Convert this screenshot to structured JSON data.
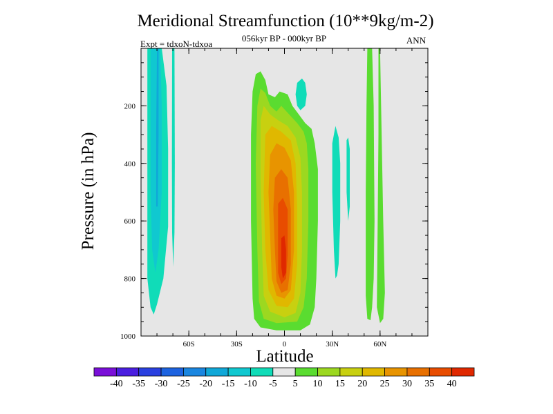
{
  "chart_data": {
    "type": "heatmap",
    "title": "Meridional Streamfunction (10**9kg/m-2)",
    "subtitle": "056kyr BP - 000kyr BP",
    "experiment_label": "Expt = tdxoN-tdxoa",
    "season_label": "ANN",
    "xlabel": "Latitude",
    "ylabel": "Pressure (in hPa)",
    "xlim": [
      -90,
      90
    ],
    "ylim": [
      1000,
      0
    ],
    "x_ticks": [
      {
        "value": -60,
        "label": "60S"
      },
      {
        "value": -30,
        "label": "30S"
      },
      {
        "value": 0,
        "label": "0"
      },
      {
        "value": 30,
        "label": "30N"
      },
      {
        "value": 60,
        "label": "60N"
      }
    ],
    "y_ticks": [
      {
        "value": 200,
        "label": "200"
      },
      {
        "value": 400,
        "label": "400"
      },
      {
        "value": 600,
        "label": "600"
      },
      {
        "value": 800,
        "label": "800"
      },
      {
        "value": 1000,
        "label": "1000"
      }
    ],
    "background_color": "#e6e6e6",
    "colorbar": {
      "levels": [
        -40,
        -35,
        -30,
        -25,
        -20,
        -15,
        -10,
        -5,
        5,
        10,
        15,
        20,
        25,
        30,
        35,
        40
      ],
      "labels": [
        "-40",
        "-35",
        "-30",
        "-25",
        "-20",
        "-15",
        "-10",
        "-5",
        "5",
        "10",
        "15",
        "20",
        "25",
        "30",
        "35",
        "40"
      ],
      "colors": [
        "#7a0fd8",
        "#4a1ee0",
        "#2a40e0",
        "#1d63e0",
        "#1a86e0",
        "#10a8d8",
        "#10c8d0",
        "#10dcb8",
        "#e6e6e6",
        "#5adc30",
        "#9cd820",
        "#c8d010",
        "#e0b800",
        "#e89400",
        "#e87000",
        "#e84c00",
        "#e02800"
      ]
    },
    "regions": [
      {
        "name": "sh-negative-band",
        "level": -10,
        "color": "#10dcb8",
        "points": [
          [
            -86,
            0
          ],
          [
            -77,
            0
          ],
          [
            -74,
            130
          ],
          [
            -73,
            350
          ],
          [
            -73,
            620
          ],
          [
            -76,
            800
          ],
          [
            -80,
            890
          ],
          [
            -82,
            925
          ],
          [
            -84,
            900
          ],
          [
            -86,
            800
          ],
          [
            -86,
            700
          ]
        ]
      },
      {
        "name": "sh-negative-core",
        "level": -15,
        "color": "#10c8d0",
        "points": [
          [
            -84,
            0
          ],
          [
            -78,
            0
          ],
          [
            -77,
            200
          ],
          [
            -77,
            500
          ],
          [
            -79,
            700
          ],
          [
            -81,
            780
          ],
          [
            -83,
            700
          ],
          [
            -84,
            500
          ]
        ]
      },
      {
        "name": "sh-negative-inner",
        "level": -20,
        "color": "#10a8d8",
        "points": [
          [
            -80,
            0
          ],
          [
            -79,
            0
          ],
          [
            -79,
            300
          ],
          [
            -79.5,
            550
          ],
          [
            -80.5,
            550
          ],
          [
            -80.5,
            300
          ]
        ]
      },
      {
        "name": "sh-negative-strip",
        "level": -10,
        "color": "#10dcb8",
        "points": [
          [
            -70.5,
            0
          ],
          [
            -69,
            0
          ],
          [
            -68.8,
            400
          ],
          [
            -69,
            640
          ],
          [
            -69.8,
            760
          ],
          [
            -70.5,
            640
          ],
          [
            -70.6,
            400
          ]
        ]
      },
      {
        "name": "hadley-5",
        "level": 5,
        "color": "#5adc30",
        "points": [
          [
            -20,
            150
          ],
          [
            -18,
            90
          ],
          [
            -15,
            80
          ],
          [
            -12,
            110
          ],
          [
            -10,
            160
          ],
          [
            -6,
            170
          ],
          [
            -3,
            150
          ],
          [
            2,
            160
          ],
          [
            5,
            200
          ],
          [
            9,
            230
          ],
          [
            13,
            260
          ],
          [
            17,
            280
          ],
          [
            19,
            330
          ],
          [
            21,
            420
          ],
          [
            21,
            600
          ],
          [
            20,
            800
          ],
          [
            19,
            900
          ],
          [
            16,
            960
          ],
          [
            10,
            980
          ],
          [
            -5,
            980
          ],
          [
            -15,
            970
          ],
          [
            -19,
            940
          ],
          [
            -20,
            870
          ],
          [
            -21,
            600
          ],
          [
            -21,
            300
          ]
        ]
      },
      {
        "name": "hadley-10",
        "level": 10,
        "color": "#9cd820",
        "points": [
          [
            -17,
            200
          ],
          [
            -15,
            140
          ],
          [
            -12,
            155
          ],
          [
            -9,
            200
          ],
          [
            -5,
            220
          ],
          [
            -2,
            200
          ],
          [
            3,
            230
          ],
          [
            8,
            260
          ],
          [
            12,
            290
          ],
          [
            14,
            330
          ],
          [
            15,
            420
          ],
          [
            15,
            600
          ],
          [
            14,
            800
          ],
          [
            12,
            900
          ],
          [
            8,
            950
          ],
          [
            -5,
            955
          ],
          [
            -13,
            940
          ],
          [
            -16,
            880
          ],
          [
            -17,
            700
          ],
          [
            -18,
            400
          ]
        ]
      },
      {
        "name": "hadley-15",
        "level": 15,
        "color": "#c8d010",
        "points": [
          [
            -15,
            250
          ],
          [
            -13,
            200
          ],
          [
            -9,
            230
          ],
          [
            -4,
            250
          ],
          [
            2,
            270
          ],
          [
            7,
            310
          ],
          [
            10,
            380
          ],
          [
            11,
            500
          ],
          [
            11,
            700
          ],
          [
            10,
            850
          ],
          [
            7,
            920
          ],
          [
            0,
            935
          ],
          [
            -9,
            915
          ],
          [
            -13,
            860
          ],
          [
            -14,
            700
          ],
          [
            -15,
            450
          ]
        ]
      },
      {
        "name": "hadley-20",
        "level": 20,
        "color": "#e0b800",
        "points": [
          [
            -12,
            300
          ],
          [
            -8,
            270
          ],
          [
            -2,
            290
          ],
          [
            4,
            320
          ],
          [
            7,
            400
          ],
          [
            8,
            550
          ],
          [
            8,
            750
          ],
          [
            6,
            870
          ],
          [
            2,
            900
          ],
          [
            -5,
            895
          ],
          [
            -10,
            840
          ],
          [
            -12,
            700
          ],
          [
            -13,
            500
          ]
        ]
      },
      {
        "name": "hadley-25",
        "level": 25,
        "color": "#e89400",
        "points": [
          [
            -9,
            370
          ],
          [
            -5,
            330
          ],
          [
            0,
            345
          ],
          [
            4,
            390
          ],
          [
            6,
            500
          ],
          [
            6,
            700
          ],
          [
            4,
            840
          ],
          [
            0,
            870
          ],
          [
            -5,
            860
          ],
          [
            -8,
            800
          ],
          [
            -9,
            650
          ],
          [
            -10,
            500
          ]
        ]
      },
      {
        "name": "hadley-30",
        "level": 30,
        "color": "#e87000",
        "points": [
          [
            -6,
            450
          ],
          [
            -2,
            420
          ],
          [
            2,
            450
          ],
          [
            4,
            560
          ],
          [
            4,
            750
          ],
          [
            2,
            840
          ],
          [
            -2,
            850
          ],
          [
            -5,
            810
          ],
          [
            -6,
            700
          ],
          [
            -7,
            560
          ]
        ]
      },
      {
        "name": "hadley-35",
        "level": 35,
        "color": "#e84c00",
        "points": [
          [
            -4,
            540
          ],
          [
            -1,
            520
          ],
          [
            2,
            560
          ],
          [
            2,
            720
          ],
          [
            1,
            800
          ],
          [
            -2,
            820
          ],
          [
            -4,
            780
          ],
          [
            -4,
            650
          ]
        ]
      },
      {
        "name": "hadley-40",
        "level": 40,
        "color": "#e02800",
        "points": [
          [
            -2,
            660
          ],
          [
            0,
            650
          ],
          [
            1,
            700
          ],
          [
            1,
            780
          ],
          [
            -1,
            800
          ],
          [
            -2,
            760
          ]
        ]
      },
      {
        "name": "nh-negative-blob",
        "level": -10,
        "color": "#10dcb8",
        "points": [
          [
            8,
            120
          ],
          [
            11,
            105
          ],
          [
            13,
            120
          ],
          [
            14,
            160
          ],
          [
            13,
            200
          ],
          [
            10,
            215
          ],
          [
            8,
            200
          ],
          [
            7,
            160
          ]
        ]
      },
      {
        "name": "nh-negative-ferrel",
        "level": -10,
        "color": "#10dcb8",
        "points": [
          [
            30,
            330
          ],
          [
            31,
            300
          ],
          [
            32,
            270
          ],
          [
            34,
            310
          ],
          [
            35,
            400
          ],
          [
            35,
            600
          ],
          [
            34,
            750
          ],
          [
            33,
            790
          ],
          [
            32,
            800
          ],
          [
            31,
            700
          ],
          [
            30,
            500
          ]
        ]
      },
      {
        "name": "nh-negative-small",
        "level": -10,
        "color": "#10dcb8",
        "points": [
          [
            39,
            320
          ],
          [
            40,
            310
          ],
          [
            41,
            350
          ],
          [
            41,
            550
          ],
          [
            40,
            600
          ],
          [
            39,
            500
          ]
        ]
      },
      {
        "name": "nh-positive-band1",
        "level": 5,
        "color": "#5adc30",
        "points": [
          [
            52,
            0
          ],
          [
            55,
            0
          ],
          [
            56,
            200
          ],
          [
            56.5,
            600
          ],
          [
            56,
            800
          ],
          [
            55,
            900
          ],
          [
            54,
            945
          ],
          [
            52,
            940
          ],
          [
            51,
            860
          ],
          [
            51,
            500
          ],
          [
            51.5,
            200
          ]
        ]
      },
      {
        "name": "nh-positive-band2",
        "level": 5,
        "color": "#5adc30",
        "points": [
          [
            59,
            0
          ],
          [
            60,
            0
          ],
          [
            61,
            300
          ],
          [
            62,
            600
          ],
          [
            63,
            850
          ],
          [
            62,
            940
          ],
          [
            60,
            955
          ],
          [
            58,
            900
          ],
          [
            58.5,
            600
          ],
          [
            59,
            300
          ]
        ]
      }
    ]
  }
}
